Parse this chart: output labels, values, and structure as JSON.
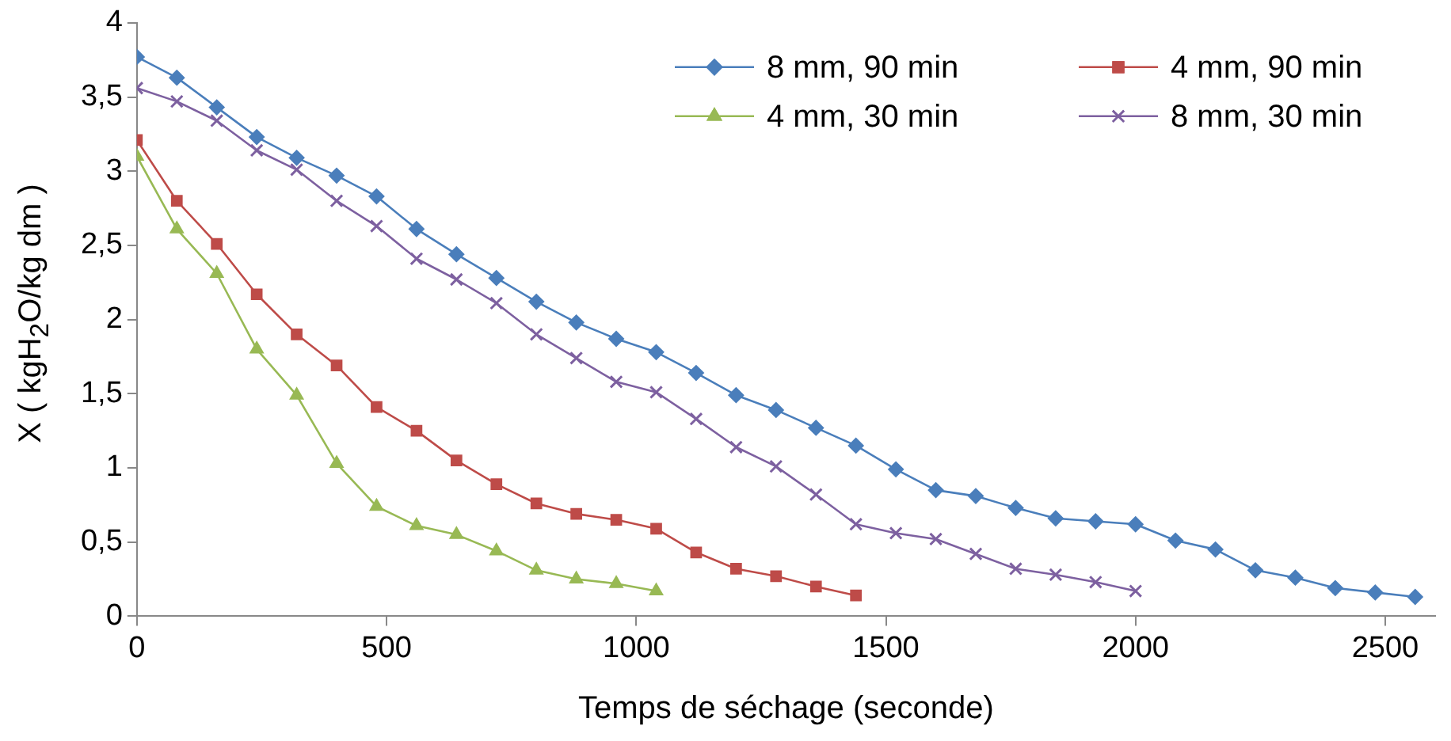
{
  "chart_data": {
    "type": "line",
    "xlabel": "Temps de séchage (seconde)",
    "ylabel": "X ( kgH$_{2}$O/kg dm )",
    "xlim": [
      0,
      2600
    ],
    "xticks": [
      0,
      500,
      1000,
      1500,
      2000,
      2500
    ],
    "ylim": [
      0,
      4
    ],
    "yticks": [
      0,
      {
        "value": 0.5,
        "label": "0,5"
      },
      1,
      {
        "value": 1.5,
        "label": "1,5"
      },
      2,
      {
        "value": 2.5,
        "label": "2,5"
      },
      3,
      {
        "value": 3.5,
        "label": "3,5"
      },
      4
    ],
    "grid": false,
    "legend": "top right",
    "line_style": "solid",
    "series": [
      {
        "name": "8 mm, 90 min",
        "color": "#4a7ebb",
        "marker": "diamond",
        "x": [
          0,
          80,
          160,
          240,
          320,
          400,
          480,
          560,
          640,
          720,
          800,
          880,
          960,
          1040,
          1120,
          1200,
          1280,
          1360,
          1440,
          1520,
          1600,
          1680,
          1760,
          1840,
          1920,
          2000,
          2080,
          2160,
          2240,
          2320,
          2400,
          2480,
          2560
        ],
        "values": [
          3.77,
          3.63,
          3.43,
          3.23,
          3.09,
          2.97,
          2.83,
          2.61,
          2.44,
          2.28,
          2.12,
          1.98,
          1.87,
          1.78,
          1.64,
          1.49,
          1.39,
          1.27,
          1.15,
          0.99,
          0.85,
          0.81,
          0.73,
          0.66,
          0.64,
          0.62,
          0.51,
          0.45,
          0.31,
          0.26,
          0.19,
          0.16,
          0.13
        ]
      },
      {
        "name": "4 mm, 90 min",
        "color": "#be4b48",
        "marker": "square",
        "x": [
          0,
          80,
          160,
          240,
          320,
          400,
          480,
          560,
          640,
          720,
          800,
          880,
          960,
          1040,
          1120,
          1200,
          1280,
          1360,
          1440
        ],
        "values": [
          3.21,
          2.8,
          2.51,
          2.17,
          1.9,
          1.69,
          1.41,
          1.25,
          1.05,
          0.89,
          0.76,
          0.69,
          0.65,
          0.59,
          0.43,
          0.32,
          0.27,
          0.2,
          0.14
        ]
      },
      {
        "name": "4 mm, 30 min",
        "color": "#98b954",
        "marker": "triangle",
        "x": [
          0,
          80,
          160,
          240,
          320,
          400,
          480,
          560,
          640,
          720,
          800,
          880,
          960,
          1040
        ],
        "values": [
          3.1,
          2.61,
          2.31,
          1.8,
          1.49,
          1.03,
          0.74,
          0.61,
          0.55,
          0.44,
          0.31,
          0.25,
          0.22,
          0.17
        ]
      },
      {
        "name": "8 mm, 30 min",
        "color": "#7d60a0",
        "marker": "cross",
        "x": [
          0,
          80,
          160,
          240,
          320,
          400,
          480,
          560,
          640,
          720,
          800,
          880,
          960,
          1040,
          1120,
          1200,
          1280,
          1360,
          1440,
          1520,
          1600,
          1680,
          1760,
          1840,
          1920,
          2000
        ],
        "values": [
          3.56,
          3.47,
          3.34,
          3.14,
          3.01,
          2.8,
          2.63,
          2.41,
          2.27,
          2.11,
          1.9,
          1.74,
          1.58,
          1.51,
          1.33,
          1.14,
          1.01,
          0.82,
          0.62,
          0.56,
          0.52,
          0.42,
          0.32,
          0.28,
          0.23,
          0.17
        ]
      }
    ]
  }
}
